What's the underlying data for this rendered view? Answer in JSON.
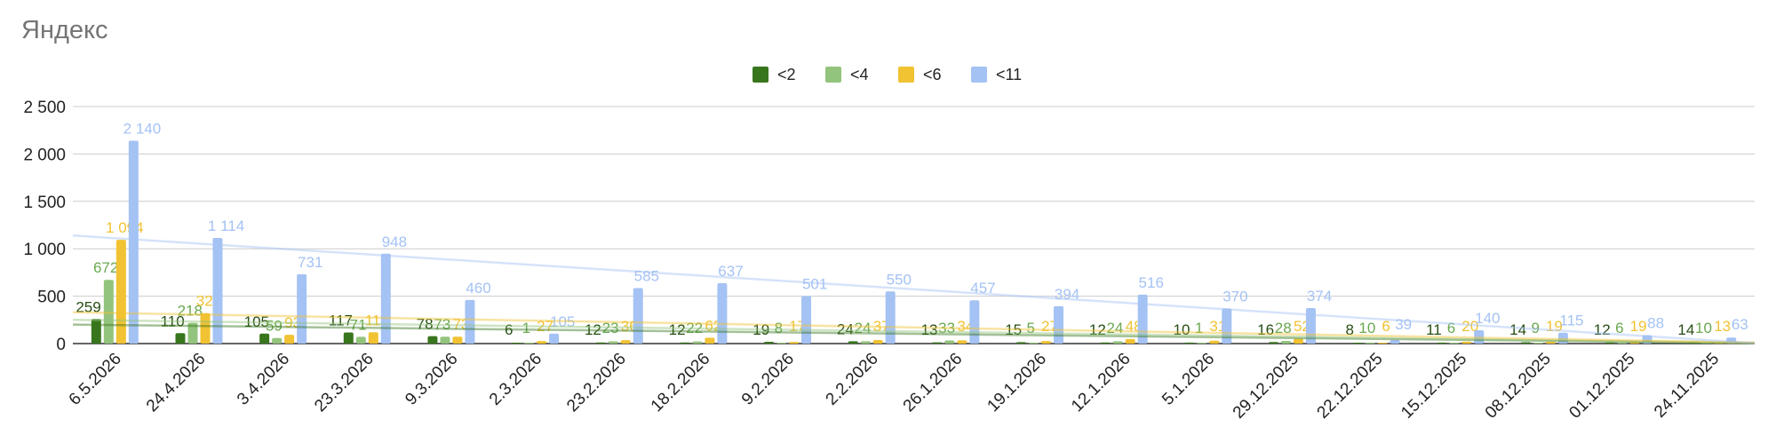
{
  "chart_data": {
    "type": "bar",
    "title": "Яндекс",
    "xlabel": "",
    "ylabel": "",
    "ylim": [
      0,
      2500
    ],
    "yticks": [
      0,
      500,
      1000,
      1500,
      2000,
      2500
    ],
    "ytick_labels": [
      "0",
      "500",
      "1 000",
      "1 500",
      "2 000",
      "2 500"
    ],
    "grid": true,
    "legend_position": "top",
    "categories": [
      "6.5.2026",
      "24.4.2026",
      "3.4.2026",
      "23.3.2026",
      "9.3.2026",
      "2.3.2026",
      "23.2.2026",
      "18.2.2026",
      "9.2.2026",
      "2.2.2026",
      "26.1.2026",
      "19.1.2026",
      "12.1.2026",
      "5.1.2026",
      "29.12.2025",
      "22.12.2025",
      "15.12.2025",
      "08.12.2025",
      "01.12.2025",
      "24.11.2025"
    ],
    "series": [
      {
        "name": "<2",
        "color": "#38761d",
        "values": [
          259,
          110,
          105,
          117,
          78,
          6,
          12,
          12,
          19,
          24,
          13,
          15,
          12,
          10,
          16,
          8,
          11,
          14,
          12,
          14
        ]
      },
      {
        "name": "<4",
        "color": "#93c47d",
        "values": [
          672,
          218,
          59,
          71,
          73,
          1,
          23,
          22,
          8,
          24,
          33,
          5,
          24,
          1,
          28,
          10,
          6,
          9,
          6,
          10
        ]
      },
      {
        "name": "<6",
        "color": "#f1c232",
        "values": [
          1094,
          321,
          93,
          119,
          73,
          27,
          36,
          62,
          17,
          37,
          34,
          27,
          48,
          31,
          52,
          6,
          20,
          19,
          19,
          13
        ]
      },
      {
        "name": "<11",
        "color": "#a4c2f4",
        "values": [
          2140,
          1114,
          731,
          948,
          460,
          105,
          585,
          637,
          501,
          550,
          457,
          394,
          516,
          370,
          374,
          39,
          140,
          115,
          88,
          63
        ]
      }
    ],
    "data_labels": [
      [
        "259",
        "672",
        "1 094",
        "2 140"
      ],
      [
        "110",
        "218",
        "321",
        "1 114"
      ],
      [
        "105",
        "59",
        "93",
        "731"
      ],
      [
        "117",
        "71",
        "119",
        "948"
      ],
      [
        "78",
        "73",
        "73",
        "460"
      ],
      [
        "6",
        "1",
        "27",
        "105"
      ],
      [
        "12",
        "23",
        "36",
        "585"
      ],
      [
        "12",
        "22",
        "62",
        "637"
      ],
      [
        "19",
        "8",
        "17",
        "501"
      ],
      [
        "24",
        "24",
        "37",
        "550"
      ],
      [
        "13",
        "33",
        "34",
        "457"
      ],
      [
        "15",
        "5",
        "27",
        "394"
      ],
      [
        "12",
        "24",
        "48",
        "516"
      ],
      [
        "10",
        "1",
        "31",
        "370"
      ],
      [
        "16",
        "28",
        "52",
        "374"
      ],
      [
        "8",
        "10",
        "6",
        "39"
      ],
      [
        "11",
        "6",
        "20",
        "140"
      ],
      [
        "14",
        "9",
        "19",
        "115"
      ],
      [
        "12",
        "6",
        "19",
        "88"
      ],
      [
        "14",
        "10",
        "13",
        "63"
      ]
    ],
    "trendlines": [
      {
        "series": "<2",
        "start": 200,
        "end": 5
      },
      {
        "series": "<4",
        "start": 250,
        "end": 5
      },
      {
        "series": "<6",
        "start": 330,
        "end": 10
      },
      {
        "series": "<11",
        "start": 1140,
        "end": 5
      }
    ]
  }
}
